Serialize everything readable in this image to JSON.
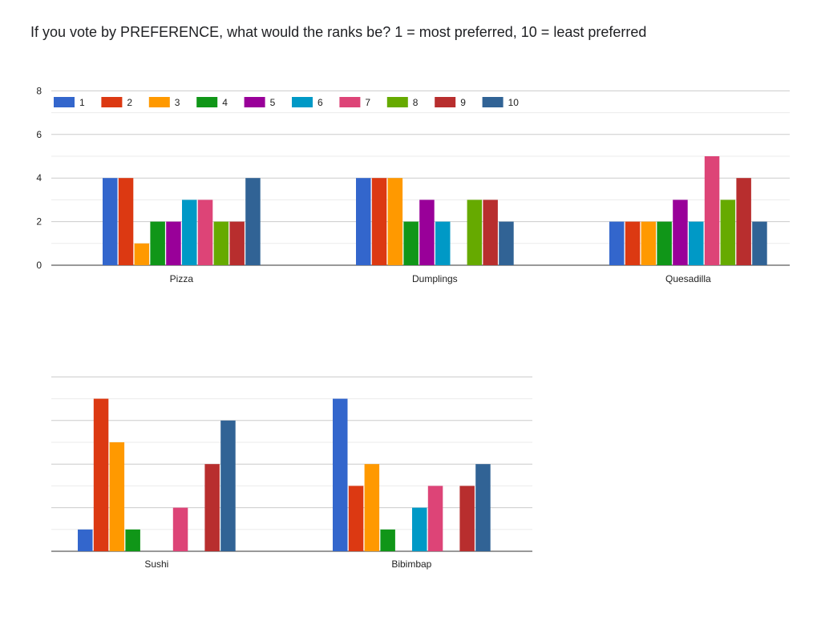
{
  "title": "If you vote by PREFERENCE, what would the ranks be? 1 = most preferred, 10 = least preferred",
  "colors": [
    "#3366cc",
    "#dc3912",
    "#ff9900",
    "#109618",
    "#990099",
    "#0099c6",
    "#dd4477",
    "#66aa00",
    "#b82e2e",
    "#316395"
  ],
  "chart_data": {
    "type": "bar",
    "categories": [
      "Pizza",
      "Dumplings",
      "Quesadilla",
      "Sushi",
      "Bibimbap"
    ],
    "series": [
      {
        "name": "1",
        "values": [
          4,
          4,
          2,
          1,
          7
        ]
      },
      {
        "name": "2",
        "values": [
          4,
          4,
          2,
          7,
          3
        ]
      },
      {
        "name": "3",
        "values": [
          1,
          4,
          2,
          5,
          4
        ]
      },
      {
        "name": "4",
        "values": [
          2,
          2,
          2,
          1,
          1
        ]
      },
      {
        "name": "5",
        "values": [
          2,
          3,
          3,
          0,
          0
        ]
      },
      {
        "name": "6",
        "values": [
          3,
          2,
          2,
          0,
          2
        ]
      },
      {
        "name": "7",
        "values": [
          3,
          0,
          5,
          2,
          3
        ]
      },
      {
        "name": "8",
        "values": [
          2,
          3,
          3,
          0,
          0
        ]
      },
      {
        "name": "9",
        "values": [
          2,
          3,
          4,
          4,
          3
        ]
      },
      {
        "name": "10",
        "values": [
          4,
          2,
          2,
          6,
          4
        ]
      }
    ],
    "ylim": [
      0,
      8
    ],
    "yticks": [
      "0",
      "2",
      "4",
      "6",
      "8"
    ],
    "grid": true,
    "legend": "top-left"
  }
}
